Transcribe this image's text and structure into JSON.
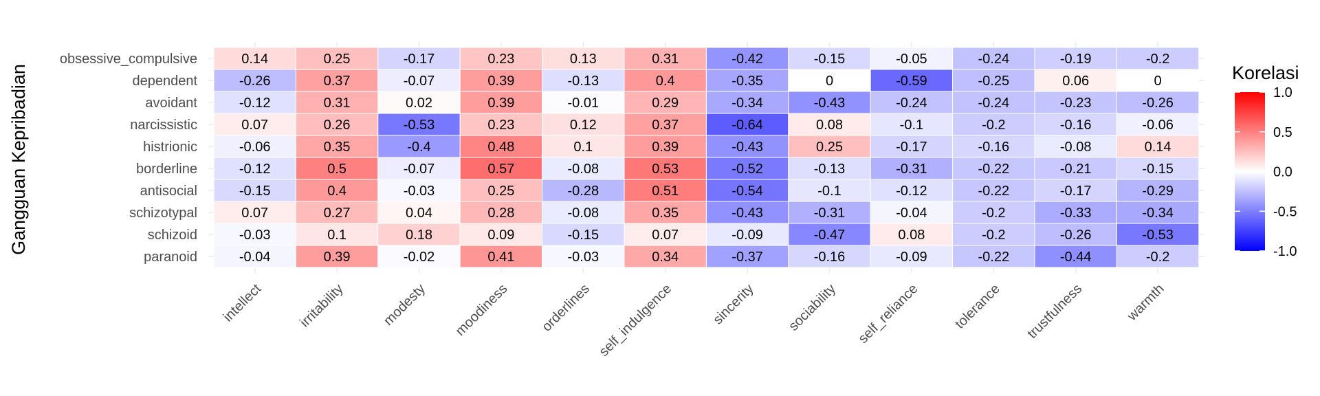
{
  "chart_data": {
    "type": "heatmap",
    "title": "",
    "xlabel": "",
    "ylabel": "Gangguan Kepribadian",
    "rows": [
      "obsessive_compulsive",
      "dependent",
      "avoidant",
      "narcissistic",
      "histrionic",
      "borderline",
      "antisocial",
      "schizotypal",
      "schizoid",
      "paranoid"
    ],
    "columns": [
      "intellect",
      "irritability",
      "modesty",
      "moodiness",
      "orderlines",
      "self_indulgence",
      "sincerity",
      "sociability",
      "self_reliance",
      "tolerance",
      "trustfulness",
      "warmth"
    ],
    "values": [
      [
        0.14,
        0.25,
        -0.17,
        0.23,
        0.13,
        0.31,
        -0.42,
        -0.15,
        -0.05,
        -0.24,
        -0.19,
        -0.2
      ],
      [
        -0.26,
        0.37,
        -0.07,
        0.39,
        -0.13,
        0.4,
        -0.35,
        0,
        -0.59,
        -0.25,
        0.06,
        0
      ],
      [
        -0.12,
        0.31,
        0.02,
        0.39,
        -0.01,
        0.29,
        -0.34,
        -0.43,
        -0.24,
        -0.24,
        -0.23,
        -0.26
      ],
      [
        0.07,
        0.26,
        -0.53,
        0.23,
        0.12,
        0.37,
        -0.64,
        0.08,
        -0.1,
        -0.2,
        -0.16,
        -0.06
      ],
      [
        -0.06,
        0.35,
        -0.4,
        0.48,
        0.1,
        0.39,
        -0.43,
        0.25,
        -0.17,
        -0.16,
        -0.08,
        0.14
      ],
      [
        -0.12,
        0.5,
        -0.07,
        0.57,
        -0.08,
        0.53,
        -0.52,
        -0.13,
        -0.31,
        -0.22,
        -0.21,
        -0.15
      ],
      [
        -0.15,
        0.4,
        -0.03,
        0.25,
        -0.28,
        0.51,
        -0.54,
        -0.1,
        -0.12,
        -0.22,
        -0.17,
        -0.29
      ],
      [
        0.07,
        0.27,
        0.04,
        0.28,
        -0.08,
        0.35,
        -0.43,
        -0.31,
        -0.04,
        -0.2,
        -0.33,
        -0.34
      ],
      [
        -0.03,
        0.1,
        0.18,
        0.09,
        -0.15,
        0.07,
        -0.09,
        -0.47,
        0.08,
        -0.2,
        -0.26,
        -0.53
      ],
      [
        -0.04,
        0.39,
        -0.02,
        0.41,
        -0.03,
        0.34,
        -0.37,
        -0.16,
        -0.09,
        -0.22,
        -0.44,
        -0.2
      ]
    ],
    "legend": {
      "title": "Korelasi",
      "ticks": [
        1.0,
        0.5,
        0.0,
        -0.5,
        -1.0
      ],
      "tick_labels": [
        "1.0",
        "0.5",
        "0.0",
        "-0.5",
        "-1.0"
      ],
      "limits": [
        -1,
        1
      ],
      "low_color": "#0000ff",
      "mid_color": "#ffffff",
      "high_color": "#ff0000"
    }
  }
}
